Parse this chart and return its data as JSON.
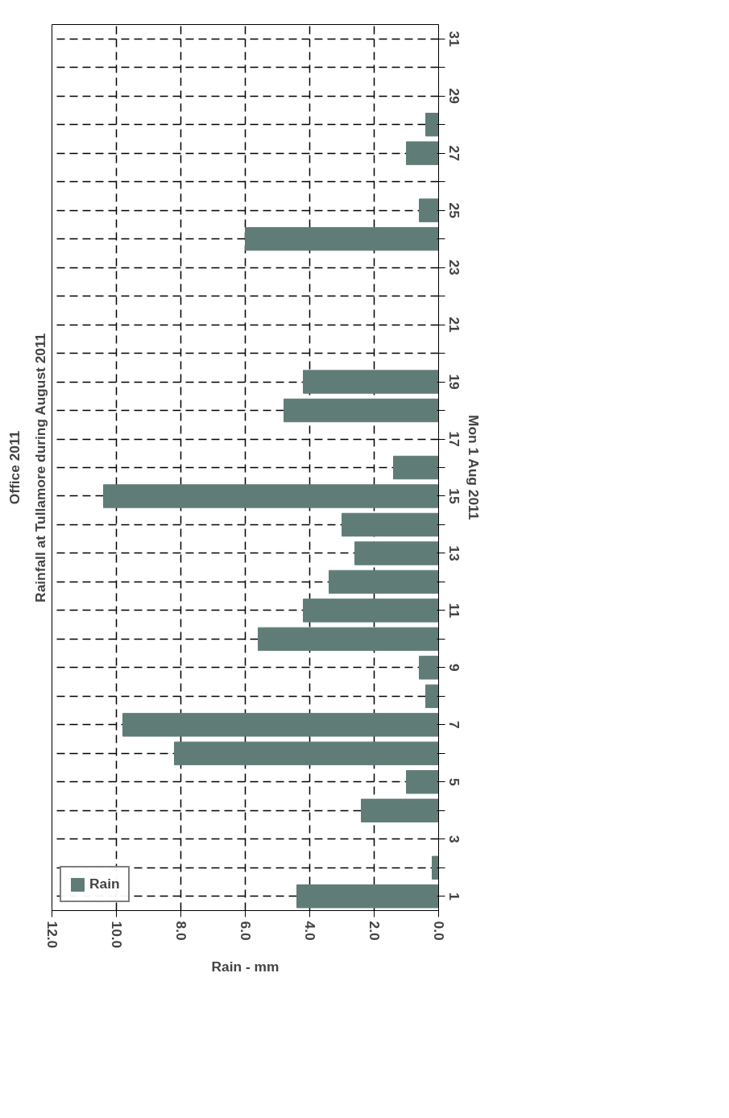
{
  "chart_data": {
    "type": "bar",
    "orientation": "horizontal",
    "title": "Office 2011",
    "subtitle": "Rainfall at Tullamore during August 2011",
    "xlabel": "Rain - mm",
    "ylabel": "Mon 1 Aug 2011",
    "x": [
      1,
      2,
      3,
      4,
      5,
      6,
      7,
      8,
      9,
      10,
      11,
      12,
      13,
      14,
      15,
      16,
      17,
      18,
      19,
      20,
      21,
      22,
      23,
      24,
      25,
      26,
      27,
      28,
      29,
      30,
      31
    ],
    "series": [
      {
        "name": "Rain",
        "color": "#5f7d76",
        "values": [
          4.4,
          0.2,
          0,
          2.4,
          1.0,
          8.2,
          9.8,
          0.4,
          0.6,
          5.6,
          4.2,
          3.4,
          2.6,
          3.0,
          10.4,
          1.4,
          0,
          4.8,
          4.2,
          0,
          0,
          0,
          0,
          6.0,
          0.6,
          0,
          1.0,
          0.4,
          0,
          0,
          0
        ]
      }
    ],
    "xlim": [
      12,
      0
    ],
    "xticks": [
      {
        "value": 0,
        "label": "0.0"
      },
      {
        "value": 2,
        "label": "2.0"
      },
      {
        "value": 4,
        "label": "4.0"
      },
      {
        "value": 6,
        "label": "6.0"
      },
      {
        "value": 8,
        "label": "8.0"
      },
      {
        "value": 10,
        "label": "10.0"
      },
      {
        "value": 12,
        "label": "12.0"
      }
    ],
    "ylim": [
      0.5,
      31.5
    ],
    "yticks": [
      1,
      {
        "value": 2,
        "label": null
      },
      3,
      {
        "value": 4,
        "label": null
      },
      5,
      {
        "value": 6,
        "label": null
      },
      7,
      {
        "value": 8,
        "label": null
      },
      9,
      {
        "value": 10,
        "label": null
      },
      11,
      {
        "value": 12,
        "label": null
      },
      13,
      {
        "value": 14,
        "label": null
      },
      15,
      {
        "value": 16,
        "label": null
      },
      17,
      {
        "value": 18,
        "label": null
      },
      19,
      {
        "value": 20,
        "label": null
      },
      21,
      {
        "value": 22,
        "label": null
      },
      23,
      {
        "value": 24,
        "label": null
      },
      25,
      {
        "value": 26,
        "label": null
      },
      27,
      {
        "value": 28,
        "label": null
      },
      29,
      {
        "value": 30,
        "label": null
      },
      31
    ],
    "grid": true,
    "line_style": "dashed",
    "legend": "bottom left"
  }
}
